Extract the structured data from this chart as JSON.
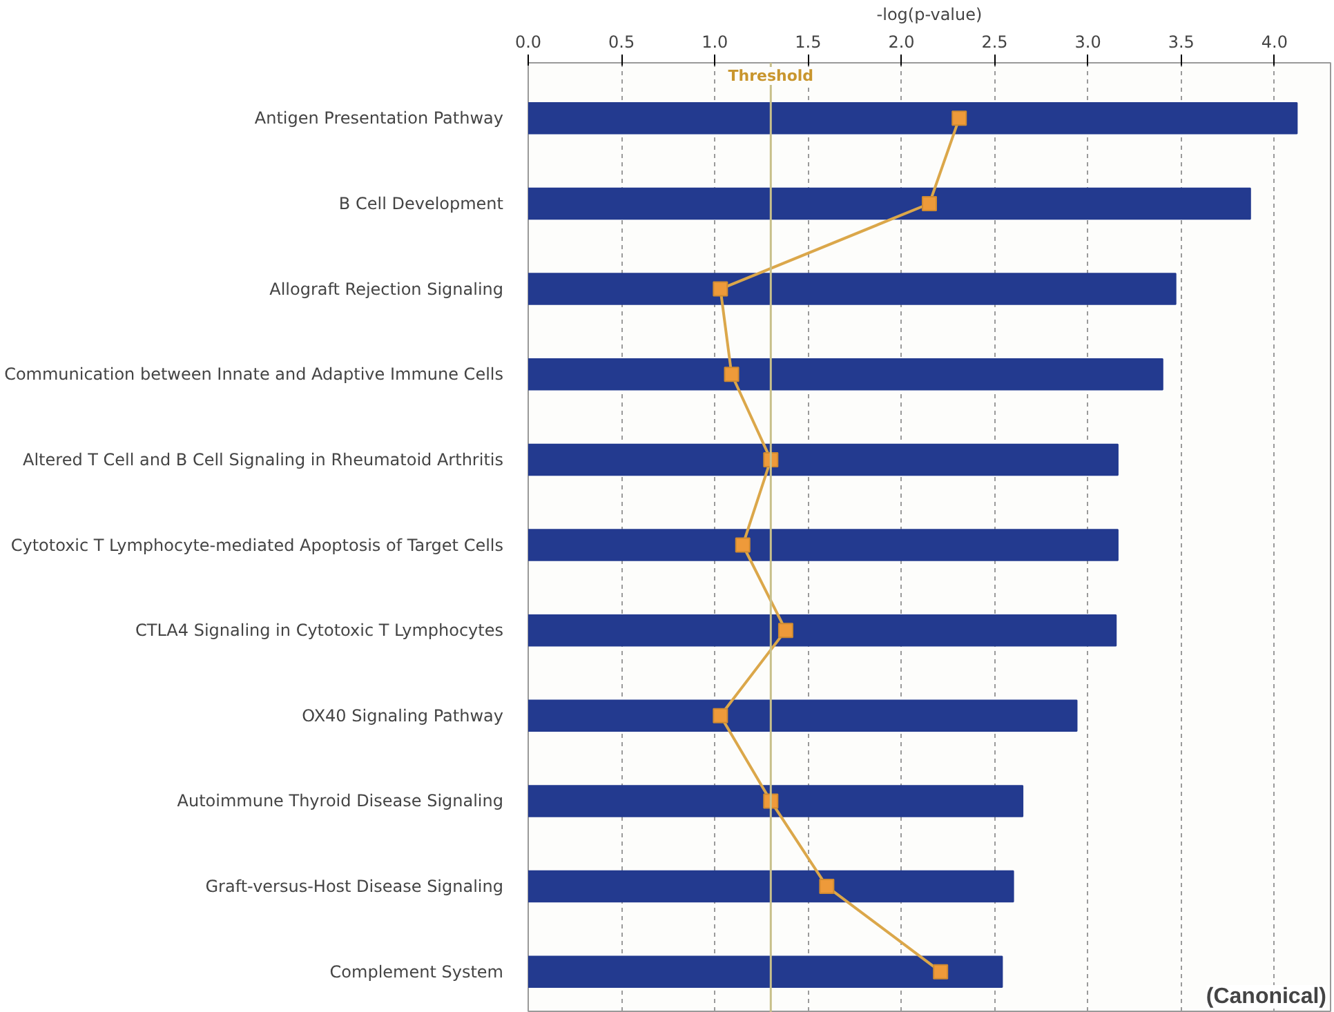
{
  "chart_data": {
    "type": "bar",
    "orientation": "horizontal",
    "xlabel": "-log(p-value)",
    "categories": [
      "Antigen Presentation Pathway",
      "B Cell Development",
      "Allograft Rejection Signaling",
      "Communication between Innate and Adaptive Immune Cells",
      "Altered T Cell and B Cell Signaling in Rheumatoid Arthritis",
      "Cytotoxic T Lymphocyte-mediated Apoptosis of Target Cells",
      "CTLA4 Signaling in Cytotoxic T Lymphocytes",
      "OX40 Signaling Pathway",
      "Autoimmune Thyroid Disease Signaling",
      "Graft-versus-Host Disease Signaling",
      "Complement System"
    ],
    "series": [
      {
        "color": "#233a8f",
        "values": [
          4.12,
          3.87,
          3.47,
          3.4,
          3.16,
          3.16,
          3.15,
          2.94,
          2.65,
          2.6,
          2.54
        ]
      },
      {
        "type": "line",
        "color": "#dba74a",
        "marker": "square",
        "line_style": "solid",
        "values": [
          2.31,
          2.15,
          1.03,
          1.09,
          1.3,
          1.15,
          1.38,
          1.03,
          1.3,
          1.6,
          2.21
        ]
      }
    ],
    "xlim": [
      0,
      4.3
    ],
    "xticks": [
      {
        "value": 0,
        "label": "0.0"
      },
      {
        "value": 0.5,
        "label": "0.5"
      },
      {
        "value": 1,
        "label": "1.0"
      },
      {
        "value": 1.5,
        "label": "1.5"
      },
      {
        "value": 2,
        "label": "2.0"
      },
      {
        "value": 2.5,
        "label": "2.5"
      },
      {
        "value": 3,
        "label": "3.0"
      },
      {
        "value": 3.5,
        "label": "3.5"
      },
      {
        "value": 4,
        "label": "4.0"
      }
    ],
    "ref_lines": [
      {
        "axis": "x",
        "value": 1.3,
        "label": "Threshold",
        "color": "#c8c08a"
      }
    ],
    "grid": "x",
    "annotations": [
      "(Canonical)"
    ]
  }
}
